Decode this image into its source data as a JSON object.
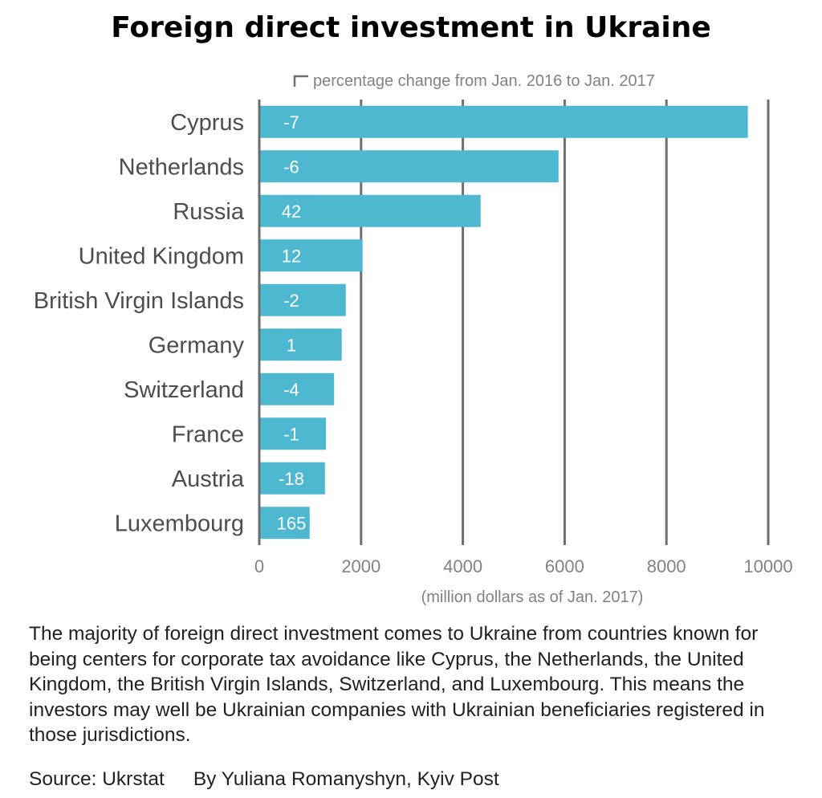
{
  "title": "Foreign direct investment in Ukraine",
  "chart_data": {
    "type": "bar",
    "orientation": "horizontal",
    "categories": [
      "Cyprus",
      "Netherlands",
      "Russia",
      "United Kingdom",
      "British Virgin Islands",
      "Germany",
      "Switzerland",
      "France",
      "Austria",
      "Luxembourg"
    ],
    "series": [
      {
        "values": [
          9600,
          5880,
          4350,
          2030,
          1700,
          1620,
          1470,
          1310,
          1290,
          990
        ]
      }
    ],
    "data_labels": [
      "-7",
      "-6",
      "42",
      "12",
      "-2",
      "1",
      "-4",
      "-1",
      "-18",
      "165"
    ],
    "legend": "percentage change from Jan. 2016 to Jan. 2017",
    "xlabel": "(million dollars as of Jan. 2017)",
    "ylabel": "",
    "xlim": [
      0,
      10000
    ],
    "xticks": [
      "0",
      "2000",
      "4000",
      "6000",
      "8000",
      "10000"
    ],
    "bar_color": "#4db8cf",
    "grid": true
  },
  "caption": "The majority of foreign direct investment comes to Ukraine from countries known for being centers for corporate tax avoidance like Cyprus, the Netherlands, the United Kingdom, the British Virgin Islands, Switzerland, and Luxembourg. This means the investors may well be Ukrainian companies with Ukrainian beneficiaries registered in those jurisdictions.",
  "source": "Source: Ukrstat",
  "byline": "By Yuliana Romanyshyn, Kyiv Post"
}
